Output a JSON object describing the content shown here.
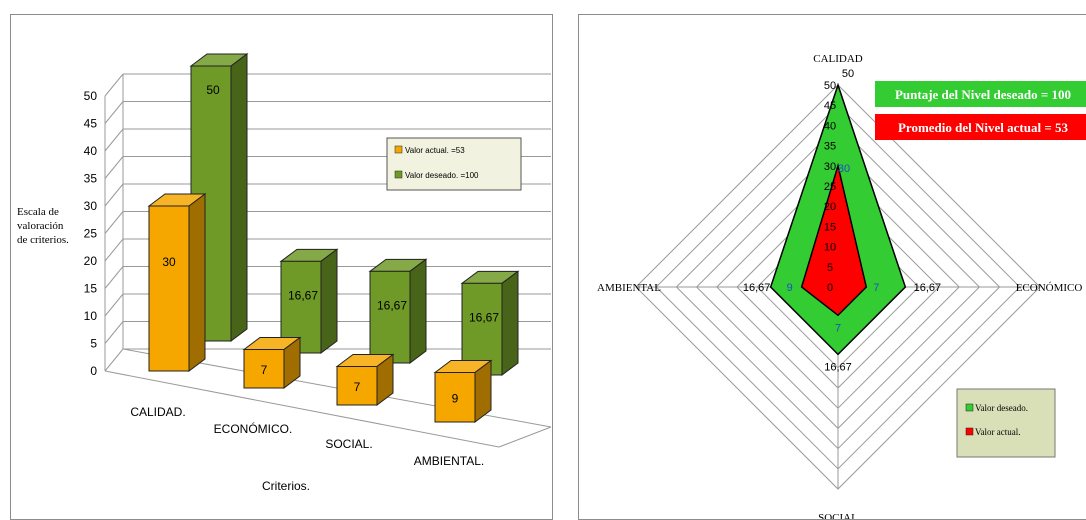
{
  "chart_data": [
    {
      "type": "bar",
      "title": "",
      "xlabel": "Criterios.",
      "ylabel": "Escala de valoración de criterios.",
      "ylabel_lines": [
        "Escala de",
        "valoración",
        "de criterios."
      ],
      "categories": [
        "CALIDAD.",
        "ECONÓMICO.",
        "SOCIAL.",
        "AMBIENTAL."
      ],
      "ylim": [
        0,
        50
      ],
      "yticks": [
        "0",
        "5",
        "10",
        "15",
        "20",
        "25",
        "30",
        "35",
        "40",
        "45",
        "50"
      ],
      "grid": true,
      "legend_position": "upper-right",
      "series": [
        {
          "name": "Valor actual. =53",
          "values": [
            30,
            7,
            7,
            9
          ],
          "labels": [
            "30",
            "7",
            "7",
            "9"
          ],
          "color": "#f5a700"
        },
        {
          "name": "Valor deseado. =100",
          "values": [
            50,
            16.67,
            16.67,
            16.67
          ],
          "labels": [
            "50",
            "16,67",
            "16,67",
            "16,67"
          ],
          "color": "#6f9a27"
        }
      ]
    },
    {
      "type": "radar",
      "title": "",
      "axes": [
        "CALIDAD",
        "ECONÓMICO",
        "SOCIAL",
        "AMBIENTAL"
      ],
      "rlim": [
        0,
        50
      ],
      "rticks": [
        "0",
        "5",
        "10",
        "15",
        "20",
        "25",
        "30",
        "35",
        "40",
        "45",
        "50"
      ],
      "legend_position": "lower-right",
      "series": [
        {
          "name": "Valor deseado.",
          "values": [
            50,
            16.67,
            16.67,
            16.67
          ],
          "labels": [
            "50",
            "16,67",
            "16,67",
            "16,67"
          ],
          "color": "#33cc33"
        },
        {
          "name": "Valor actual.",
          "values": [
            30,
            7,
            7,
            9
          ],
          "labels": [
            "30",
            "7",
            "7",
            "9"
          ],
          "color": "#ff0000"
        }
      ],
      "callouts": [
        {
          "text": "Puntaje del Nivel deseado = 100",
          "color": "#33cc33"
        },
        {
          "text": "Promedio del Nivel actual = 53",
          "color": "#ff0000"
        }
      ]
    }
  ]
}
